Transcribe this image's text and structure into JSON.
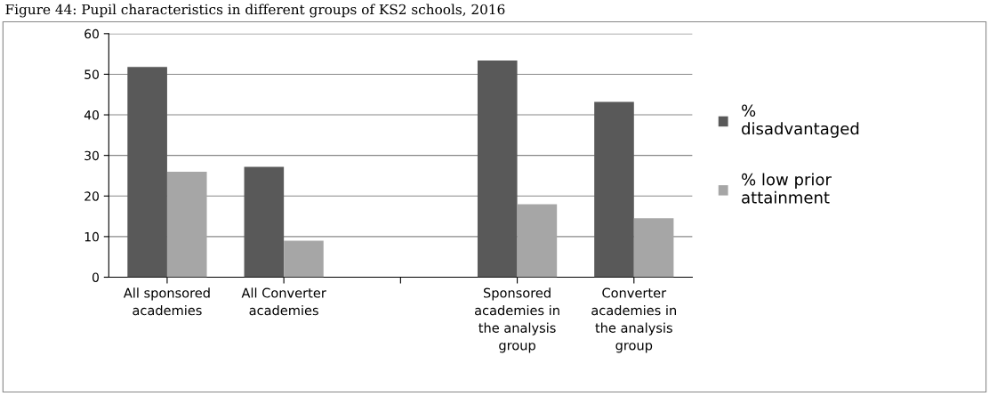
{
  "chart_data": {
    "type": "bar",
    "title": "Figure 44: Pupil characteristics in different groups of KS2 schools, 2016",
    "categories": [
      "All sponsored academies",
      "All Converter academies",
      null,
      "Sponsored academies in the analysis group",
      "Converter academies in the analysis group"
    ],
    "series": [
      {
        "name": "% disadvantaged",
        "color": "#595959",
        "values": [
          51.8,
          27.2,
          null,
          53.4,
          43.2
        ]
      },
      {
        "name": "% low prior attainment",
        "color": "#a6a6a6",
        "values": [
          26,
          9,
          null,
          18,
          14.5
        ]
      }
    ],
    "ylim": [
      0,
      60
    ],
    "yticks": [
      0,
      10,
      20,
      30,
      40,
      50,
      60
    ],
    "grid": "y",
    "legend": "right"
  }
}
